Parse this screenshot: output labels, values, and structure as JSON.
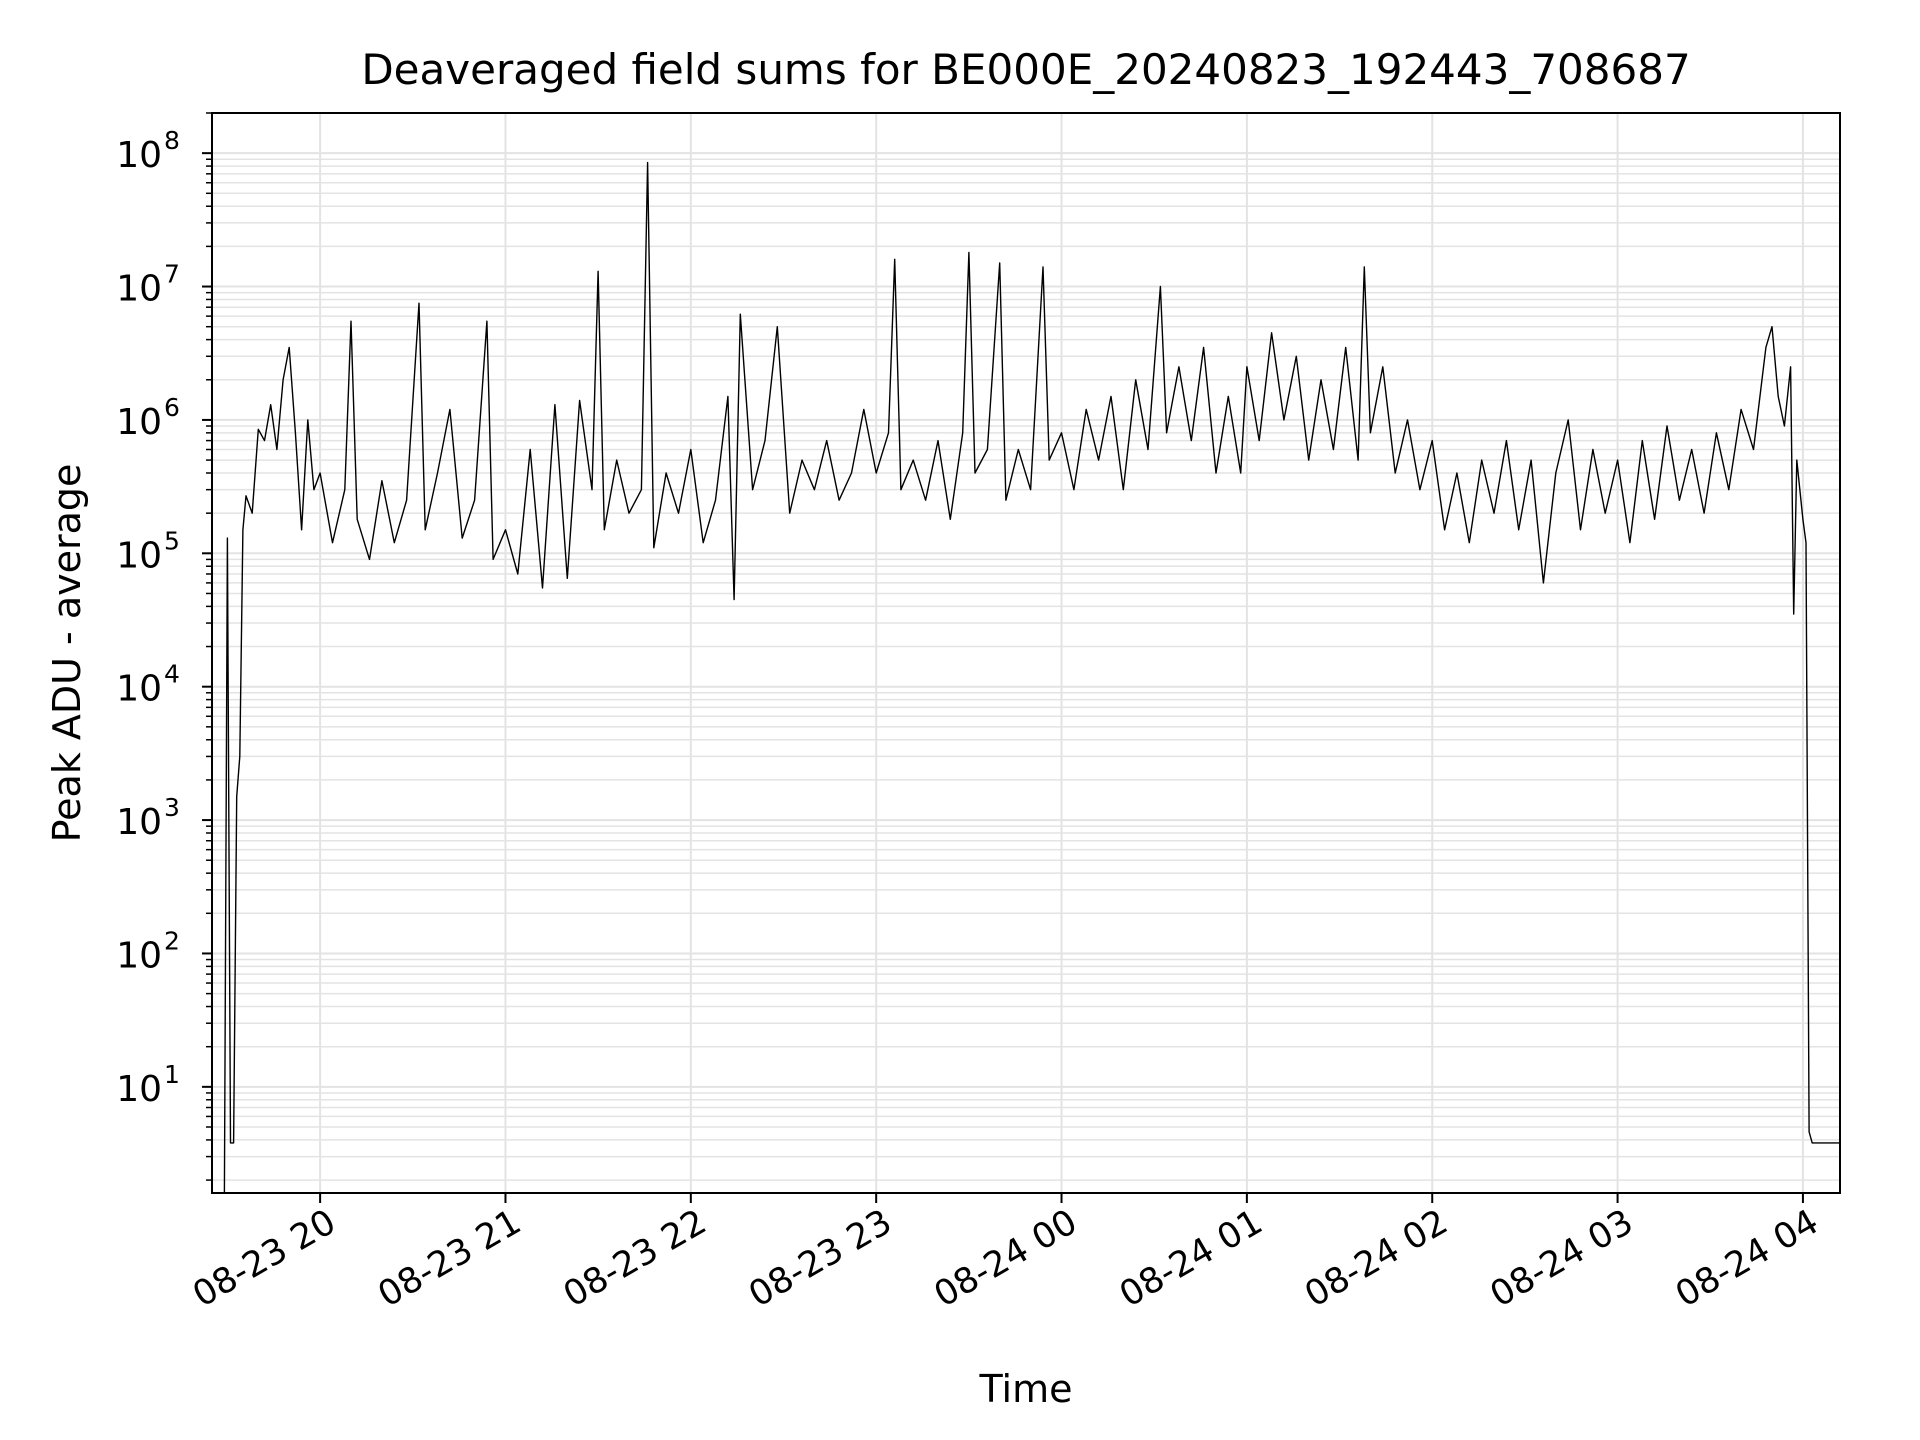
{
  "chart_data": {
    "type": "line",
    "title": "Deaveraged field sums for BE000E_20240823_192443_708687",
    "xlabel": "Time",
    "ylabel": "Peak ADU - average",
    "yscale": "log",
    "ylim": [
      1.6,
      200000000
    ],
    "xlim": [
      "2024-08-23 19:25",
      "2024-08-24 04:12"
    ],
    "grid": true,
    "line_color": "#000000",
    "grid_color": "#e3e3e3",
    "x_ticks": [
      "08-23 20",
      "08-23 21",
      "08-23 22",
      "08-23 23",
      "08-24 00",
      "08-24 01",
      "08-24 02",
      "08-24 03",
      "08-24 04"
    ],
    "x_tick_times": [
      "2024-08-23 20:00",
      "2024-08-23 21:00",
      "2024-08-23 22:00",
      "2024-08-23 23:00",
      "2024-08-24 00:00",
      "2024-08-24 01:00",
      "2024-08-24 02:00",
      "2024-08-24 03:00",
      "2024-08-24 04:00"
    ],
    "y_ticks": [
      {
        "value": 10,
        "base": "10",
        "exp": "1"
      },
      {
        "value": 100,
        "base": "10",
        "exp": "2"
      },
      {
        "value": 1000,
        "base": "10",
        "exp": "3"
      },
      {
        "value": 10000,
        "base": "10",
        "exp": "4"
      },
      {
        "value": 100000,
        "base": "10",
        "exp": "5"
      },
      {
        "value": 1000000,
        "base": "10",
        "exp": "6"
      },
      {
        "value": 10000000,
        "base": "10",
        "exp": "7"
      },
      {
        "value": 100000000,
        "base": "10",
        "exp": "8"
      }
    ],
    "series": [
      {
        "points": [
          [
            "2024-08-23 19:29",
            1.6
          ],
          [
            "2024-08-23 19:30",
            130000
          ],
          [
            "2024-08-23 19:31",
            3.8
          ],
          [
            "2024-08-23 19:32",
            3.8
          ],
          [
            "2024-08-23 19:33",
            1500
          ],
          [
            "2024-08-23 19:34",
            3000
          ],
          [
            "2024-08-23 19:35",
            150000
          ],
          [
            "2024-08-23 19:36",
            270000
          ],
          [
            "2024-08-23 19:38",
            200000
          ],
          [
            "2024-08-23 19:40",
            850000
          ],
          [
            "2024-08-23 19:42",
            700000
          ],
          [
            "2024-08-23 19:44",
            1300000
          ],
          [
            "2024-08-23 19:46",
            600000
          ],
          [
            "2024-08-23 19:48",
            2000000
          ],
          [
            "2024-08-23 19:50",
            3500000
          ],
          [
            "2024-08-23 19:52",
            800000
          ],
          [
            "2024-08-23 19:54",
            150000
          ],
          [
            "2024-08-23 19:56",
            1000000
          ],
          [
            "2024-08-23 19:58",
            300000
          ],
          [
            "2024-08-23 20:00",
            400000
          ],
          [
            "2024-08-23 20:04",
            120000
          ],
          [
            "2024-08-23 20:08",
            300000
          ],
          [
            "2024-08-23 20:10",
            5500000
          ],
          [
            "2024-08-23 20:12",
            180000
          ],
          [
            "2024-08-23 20:16",
            90000
          ],
          [
            "2024-08-23 20:20",
            350000
          ],
          [
            "2024-08-23 20:24",
            120000
          ],
          [
            "2024-08-23 20:28",
            250000
          ],
          [
            "2024-08-23 20:32",
            7500000
          ],
          [
            "2024-08-23 20:34",
            150000
          ],
          [
            "2024-08-23 20:38",
            400000
          ],
          [
            "2024-08-23 20:42",
            1200000
          ],
          [
            "2024-08-23 20:46",
            130000
          ],
          [
            "2024-08-23 20:50",
            250000
          ],
          [
            "2024-08-23 20:54",
            5500000
          ],
          [
            "2024-08-23 20:56",
            90000
          ],
          [
            "2024-08-23 21:00",
            150000
          ],
          [
            "2024-08-23 21:04",
            70000
          ],
          [
            "2024-08-23 21:08",
            600000
          ],
          [
            "2024-08-23 21:12",
            55000
          ],
          [
            "2024-08-23 21:16",
            1300000
          ],
          [
            "2024-08-23 21:20",
            65000
          ],
          [
            "2024-08-23 21:24",
            1400000
          ],
          [
            "2024-08-23 21:28",
            300000
          ],
          [
            "2024-08-23 21:30",
            13000000
          ],
          [
            "2024-08-23 21:32",
            150000
          ],
          [
            "2024-08-23 21:36",
            500000
          ],
          [
            "2024-08-23 21:40",
            200000
          ],
          [
            "2024-08-23 21:44",
            300000
          ],
          [
            "2024-08-23 21:46",
            85000000
          ],
          [
            "2024-08-23 21:48",
            110000
          ],
          [
            "2024-08-23 21:52",
            400000
          ],
          [
            "2024-08-23 21:56",
            200000
          ],
          [
            "2024-08-23 22:00",
            600000
          ],
          [
            "2024-08-23 22:04",
            120000
          ],
          [
            "2024-08-23 22:08",
            250000
          ],
          [
            "2024-08-23 22:12",
            1500000
          ],
          [
            "2024-08-23 22:14",
            45000
          ],
          [
            "2024-08-23 22:16",
            6200000
          ],
          [
            "2024-08-23 22:20",
            300000
          ],
          [
            "2024-08-23 22:24",
            700000
          ],
          [
            "2024-08-23 22:28",
            5000000
          ],
          [
            "2024-08-23 22:32",
            200000
          ],
          [
            "2024-08-23 22:36",
            500000
          ],
          [
            "2024-08-23 22:40",
            300000
          ],
          [
            "2024-08-23 22:44",
            700000
          ],
          [
            "2024-08-23 22:48",
            250000
          ],
          [
            "2024-08-23 22:52",
            400000
          ],
          [
            "2024-08-23 22:56",
            1200000
          ],
          [
            "2024-08-23 23:00",
            400000
          ],
          [
            "2024-08-23 23:04",
            800000
          ],
          [
            "2024-08-23 23:06",
            16000000
          ],
          [
            "2024-08-23 23:08",
            300000
          ],
          [
            "2024-08-23 23:12",
            500000
          ],
          [
            "2024-08-23 23:16",
            250000
          ],
          [
            "2024-08-23 23:20",
            700000
          ],
          [
            "2024-08-23 23:24",
            180000
          ],
          [
            "2024-08-23 23:28",
            800000
          ],
          [
            "2024-08-23 23:30",
            18000000
          ],
          [
            "2024-08-23 23:32",
            400000
          ],
          [
            "2024-08-23 23:36",
            600000
          ],
          [
            "2024-08-23 23:40",
            15000000
          ],
          [
            "2024-08-23 23:42",
            250000
          ],
          [
            "2024-08-23 23:46",
            600000
          ],
          [
            "2024-08-23 23:50",
            300000
          ],
          [
            "2024-08-23 23:54",
            14000000
          ],
          [
            "2024-08-23 23:56",
            500000
          ],
          [
            "2024-08-24 00:00",
            800000
          ],
          [
            "2024-08-24 00:04",
            300000
          ],
          [
            "2024-08-24 00:08",
            1200000
          ],
          [
            "2024-08-24 00:12",
            500000
          ],
          [
            "2024-08-24 00:16",
            1500000
          ],
          [
            "2024-08-24 00:20",
            300000
          ],
          [
            "2024-08-24 00:24",
            2000000
          ],
          [
            "2024-08-24 00:28",
            600000
          ],
          [
            "2024-08-24 00:32",
            10000000
          ],
          [
            "2024-08-24 00:34",
            800000
          ],
          [
            "2024-08-24 00:38",
            2500000
          ],
          [
            "2024-08-24 00:42",
            700000
          ],
          [
            "2024-08-24 00:46",
            3500000
          ],
          [
            "2024-08-24 00:50",
            400000
          ],
          [
            "2024-08-24 00:54",
            1500000
          ],
          [
            "2024-08-24 00:58",
            400000
          ],
          [
            "2024-08-24 01:00",
            2500000
          ],
          [
            "2024-08-24 01:04",
            700000
          ],
          [
            "2024-08-24 01:08",
            4500000
          ],
          [
            "2024-08-24 01:12",
            1000000
          ],
          [
            "2024-08-24 01:16",
            3000000
          ],
          [
            "2024-08-24 01:20",
            500000
          ],
          [
            "2024-08-24 01:24",
            2000000
          ],
          [
            "2024-08-24 01:28",
            600000
          ],
          [
            "2024-08-24 01:32",
            3500000
          ],
          [
            "2024-08-24 01:36",
            500000
          ],
          [
            "2024-08-24 01:38",
            14000000
          ],
          [
            "2024-08-24 01:40",
            800000
          ],
          [
            "2024-08-24 01:44",
            2500000
          ],
          [
            "2024-08-24 01:48",
            400000
          ],
          [
            "2024-08-24 01:52",
            1000000
          ],
          [
            "2024-08-24 01:56",
            300000
          ],
          [
            "2024-08-24 02:00",
            700000
          ],
          [
            "2024-08-24 02:04",
            150000
          ],
          [
            "2024-08-24 02:08",
            400000
          ],
          [
            "2024-08-24 02:12",
            120000
          ],
          [
            "2024-08-24 02:16",
            500000
          ],
          [
            "2024-08-24 02:20",
            200000
          ],
          [
            "2024-08-24 02:24",
            700000
          ],
          [
            "2024-08-24 02:28",
            150000
          ],
          [
            "2024-08-24 02:32",
            500000
          ],
          [
            "2024-08-24 02:36",
            60000
          ],
          [
            "2024-08-24 02:40",
            400000
          ],
          [
            "2024-08-24 02:44",
            1000000
          ],
          [
            "2024-08-24 02:48",
            150000
          ],
          [
            "2024-08-24 02:52",
            600000
          ],
          [
            "2024-08-24 02:56",
            200000
          ],
          [
            "2024-08-24 03:00",
            500000
          ],
          [
            "2024-08-24 03:04",
            120000
          ],
          [
            "2024-08-24 03:08",
            700000
          ],
          [
            "2024-08-24 03:12",
            180000
          ],
          [
            "2024-08-24 03:16",
            900000
          ],
          [
            "2024-08-24 03:20",
            250000
          ],
          [
            "2024-08-24 03:24",
            600000
          ],
          [
            "2024-08-24 03:28",
            200000
          ],
          [
            "2024-08-24 03:32",
            800000
          ],
          [
            "2024-08-24 03:36",
            300000
          ],
          [
            "2024-08-24 03:40",
            1200000
          ],
          [
            "2024-08-24 03:44",
            600000
          ],
          [
            "2024-08-24 03:48",
            3500000
          ],
          [
            "2024-08-24 03:50",
            5000000
          ],
          [
            "2024-08-24 03:52",
            1500000
          ],
          [
            "2024-08-24 03:54",
            900000
          ],
          [
            "2024-08-24 03:56",
            2500000
          ],
          [
            "2024-08-24 03:57",
            35000
          ],
          [
            "2024-08-24 03:58",
            500000
          ],
          [
            "2024-08-24 04:00",
            180000
          ],
          [
            "2024-08-24 04:01",
            120000
          ],
          [
            "2024-08-24 04:02",
            4.6
          ],
          [
            "2024-08-24 04:03",
            3.8
          ],
          [
            "2024-08-24 04:12",
            3.8
          ]
        ]
      }
    ]
  }
}
